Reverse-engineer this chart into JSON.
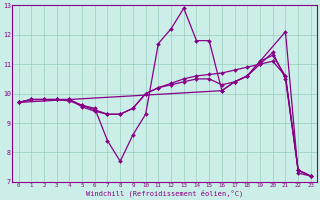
{
  "xlabel": "Windchill (Refroidissement éolien,°C)",
  "bg_color": "#cceee8",
  "line_color": "#880088",
  "grid_color": "#99ccbb",
  "xlim": [
    -0.5,
    23.5
  ],
  "ylim": [
    7,
    13
  ],
  "xticks": [
    0,
    1,
    2,
    3,
    4,
    5,
    6,
    7,
    8,
    9,
    10,
    11,
    12,
    13,
    14,
    15,
    16,
    17,
    18,
    19,
    20,
    21,
    22,
    23
  ],
  "yticks": [
    7,
    8,
    9,
    10,
    11,
    12,
    13
  ],
  "series": [
    {
      "x": [
        0,
        1,
        2,
        3,
        4,
        5,
        6,
        7,
        8,
        9,
        10,
        11,
        12,
        13,
        14,
        15,
        16,
        17,
        18,
        21,
        22,
        23
      ],
      "y": [
        9.7,
        9.8,
        9.8,
        9.8,
        9.8,
        9.6,
        9.5,
        8.4,
        7.7,
        8.6,
        9.3,
        11.7,
        12.2,
        12.9,
        11.8,
        11.8,
        10.1,
        10.4,
        10.6,
        12.1,
        7.3,
        7.2
      ]
    },
    {
      "x": [
        0,
        1,
        2,
        3,
        4,
        5,
        6,
        7,
        8,
        9,
        10,
        11,
        12,
        13,
        14,
        15,
        16,
        17,
        18,
        19,
        20,
        21,
        22,
        23
      ],
      "y": [
        9.7,
        9.8,
        9.8,
        9.8,
        9.8,
        9.55,
        9.4,
        9.3,
        9.3,
        9.5,
        10.0,
        10.2,
        10.35,
        10.5,
        10.6,
        10.65,
        10.7,
        10.8,
        10.9,
        11.0,
        11.1,
        10.6,
        7.4,
        7.2
      ]
    },
    {
      "x": [
        0,
        1,
        2,
        3,
        4,
        5,
        6,
        7,
        8,
        9,
        10,
        11,
        12,
        13,
        14,
        15,
        16,
        17,
        18,
        19,
        20,
        21,
        22,
        23
      ],
      "y": [
        9.7,
        9.8,
        9.8,
        9.8,
        9.75,
        9.6,
        9.45,
        9.3,
        9.3,
        9.5,
        10.0,
        10.2,
        10.3,
        10.4,
        10.5,
        10.5,
        10.3,
        10.4,
        10.6,
        11.1,
        11.3,
        10.6,
        7.4,
        7.2
      ]
    },
    {
      "x": [
        0,
        16,
        17,
        18,
        19,
        20,
        21,
        22,
        23
      ],
      "y": [
        9.7,
        10.1,
        10.4,
        10.6,
        11.0,
        11.4,
        10.5,
        7.4,
        7.2
      ]
    }
  ]
}
